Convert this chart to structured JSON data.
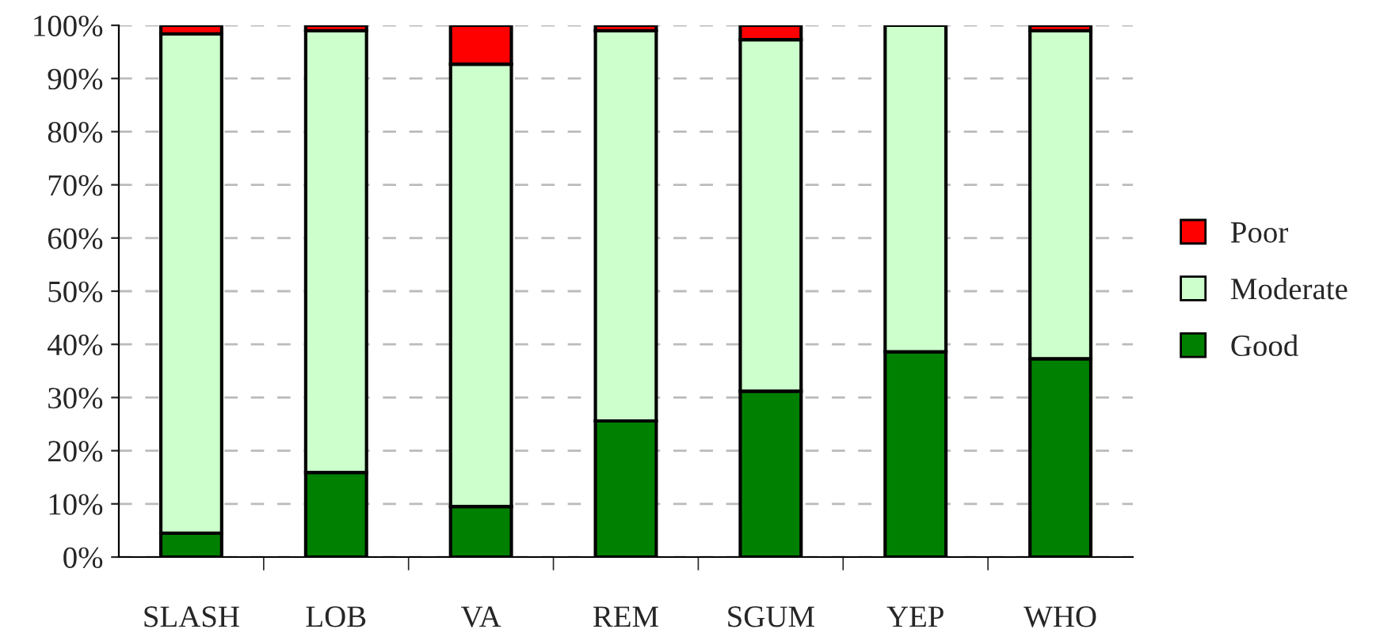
{
  "chart_data": {
    "type": "bar",
    "stacked": true,
    "categories": [
      "SLASH",
      "LOB",
      "VA",
      "REM",
      "SGUM",
      "YEP",
      "WHO"
    ],
    "series": [
      {
        "name": "Good",
        "color": "#008000",
        "values": [
          4.5,
          15.9,
          9.5,
          25.6,
          31.2,
          38.6,
          37.3
        ]
      },
      {
        "name": "Moderate",
        "color": "#ccffcc",
        "values": [
          93.9,
          83.1,
          83.2,
          73.4,
          66.1,
          61.4,
          61.7
        ]
      },
      {
        "name": "Poor",
        "color": "#ff0000",
        "values": [
          1.6,
          1.0,
          7.3,
          1.0,
          2.7,
          null,
          1.0
        ]
      }
    ],
    "ylim": [
      0,
      100
    ],
    "yticks": [
      {
        "value": 0,
        "label": "0%"
      },
      {
        "value": 10,
        "label": "10%"
      },
      {
        "value": 20,
        "label": "20%"
      },
      {
        "value": 30,
        "label": "30%"
      },
      {
        "value": 40,
        "label": "40%"
      },
      {
        "value": 50,
        "label": "50%"
      },
      {
        "value": 60,
        "label": "60%"
      },
      {
        "value": 70,
        "label": "70%"
      },
      {
        "value": 80,
        "label": "80%"
      },
      {
        "value": 90,
        "label": "90%"
      },
      {
        "value": 100,
        "label": "100%"
      }
    ],
    "grid": "y",
    "legend": "right"
  }
}
